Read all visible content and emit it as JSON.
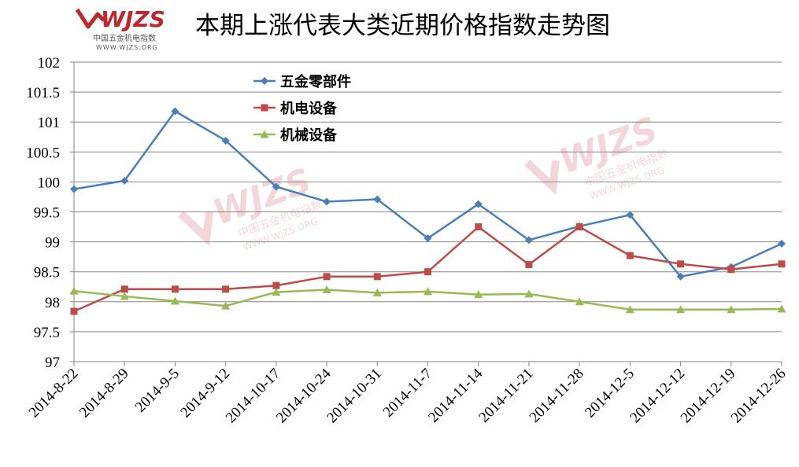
{
  "logo": {
    "brand": "WJZS",
    "name_cn": "中国五金机电指数",
    "url": "WWW.WJZS.ORG"
  },
  "colors": {
    "series_1": "#4a7ebb",
    "series_2": "#be4b48",
    "series_3": "#98b954",
    "grid": "#868686",
    "logo": "#c0262d"
  },
  "chart_data": {
    "type": "line",
    "title": "本期上涨代表大类近期价格指数走势图",
    "xlabel": "",
    "ylabel": "",
    "ylim": [
      97,
      102
    ],
    "yticks": [
      97,
      97.5,
      98,
      98.5,
      99,
      99.5,
      100,
      100.5,
      101,
      101.5,
      102
    ],
    "ytick_labels": [
      "97",
      "97.5",
      "98",
      "98.5",
      "99",
      "99.5",
      "100",
      "100.5",
      "101",
      "101.5",
      "102"
    ],
    "grid": true,
    "legend_position": "top-left",
    "categories": [
      "2014-8-22",
      "2014-8-29",
      "2014-9-5",
      "2014-9-12",
      "2014-10-17",
      "2014-10-24",
      "2014-10-31",
      "2014-11-7",
      "2014-11-14",
      "2014-11-21",
      "2014-11-28",
      "2014-12-5",
      "2014-12-12",
      "2014-12-19",
      "2014-12-26"
    ],
    "series": [
      {
        "name": "五金零部件",
        "marker": "diamond",
        "color": "#4a7ebb",
        "values": [
          99.88,
          100.02,
          101.18,
          100.69,
          99.92,
          99.67,
          99.71,
          99.06,
          99.63,
          99.03,
          99.26,
          99.45,
          98.42,
          98.58,
          98.97
        ]
      },
      {
        "name": "机电设备",
        "marker": "square",
        "color": "#be4b48",
        "values": [
          97.84,
          98.21,
          98.21,
          98.21,
          98.27,
          98.42,
          98.42,
          98.5,
          99.25,
          98.62,
          99.25,
          98.77,
          98.63,
          98.54,
          98.63
        ]
      },
      {
        "name": "机械设备",
        "marker": "triangle",
        "color": "#98b954",
        "values": [
          98.18,
          98.09,
          98.01,
          97.93,
          98.16,
          98.2,
          98.15,
          98.17,
          98.12,
          98.13,
          98.0,
          97.87,
          97.87,
          97.87,
          97.88
        ]
      }
    ]
  }
}
